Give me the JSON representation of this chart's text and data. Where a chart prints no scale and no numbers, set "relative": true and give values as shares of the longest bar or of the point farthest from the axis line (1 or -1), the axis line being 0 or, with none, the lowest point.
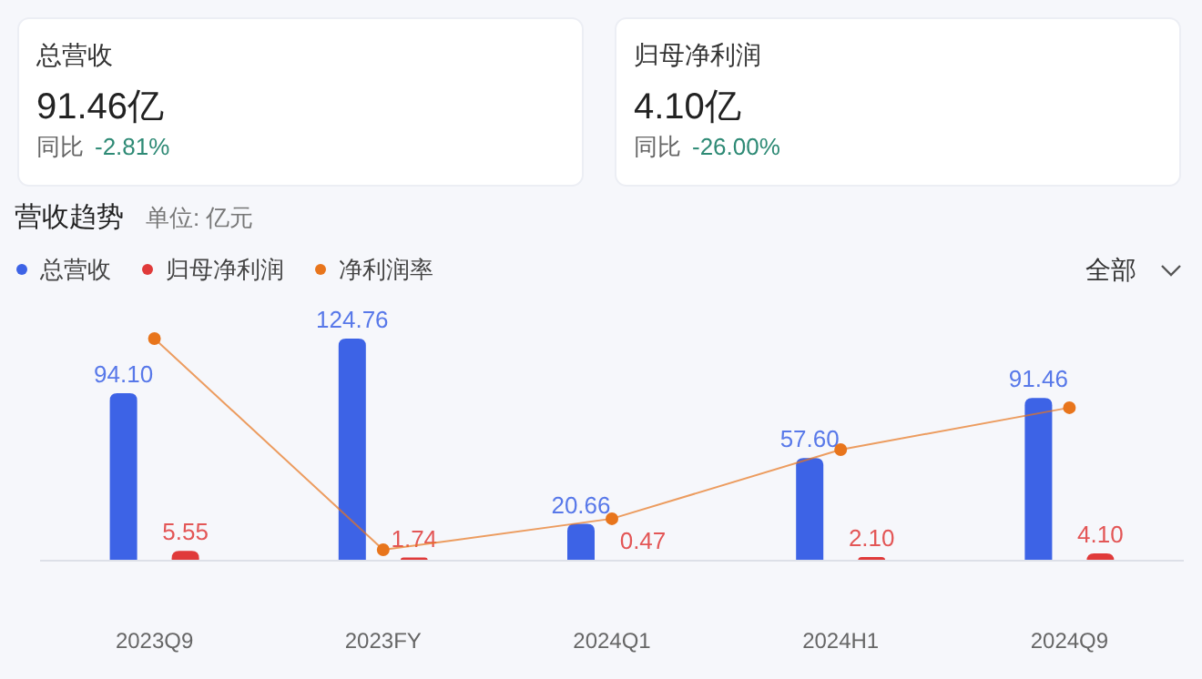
{
  "chart_data": [
    {
      "type": "other",
      "title": "总营收",
      "annotations": [
        "91.46亿",
        "同比 -2.81%"
      ]
    },
    {
      "type": "other",
      "title": "归母净利润",
      "annotations": [
        "4.10亿",
        "同比 -26.00%"
      ]
    },
    {
      "type": "bar",
      "title": "营收趋势",
      "subtitle": "单位: 亿元",
      "categories": [
        "2023Q9",
        "2023FY",
        "2024Q1",
        "2024H1",
        "2024Q9"
      ],
      "series": [
        {
          "name": "总营收",
          "color": "#3d63e6",
          "values": [
            94.1,
            124.76,
            20.66,
            57.6,
            91.46
          ],
          "value_labels": [
            "94.10",
            "124.76",
            "20.66",
            "57.60",
            "91.46"
          ]
        },
        {
          "name": "归母净利润",
          "color": "#e03a3a",
          "values": [
            5.55,
            1.74,
            0.47,
            2.1,
            4.1
          ],
          "value_labels": [
            "5.55",
            "1.74",
            "0.47",
            "2.10",
            "4.10"
          ]
        }
      ],
      "legend": "top left",
      "annotations": [
        "全部"
      ]
    },
    {
      "type": "line",
      "relative": true,
      "marker": "circle",
      "legend": "top left",
      "categories": [
        null,
        null,
        null,
        null,
        null
      ],
      "series": [
        {
          "name": "净利润率",
          "color": "#e8751c",
          "values": [
            1,
            0.049,
            0.189,
            0.5,
            0.689
          ]
        }
      ]
    }
  ]
}
